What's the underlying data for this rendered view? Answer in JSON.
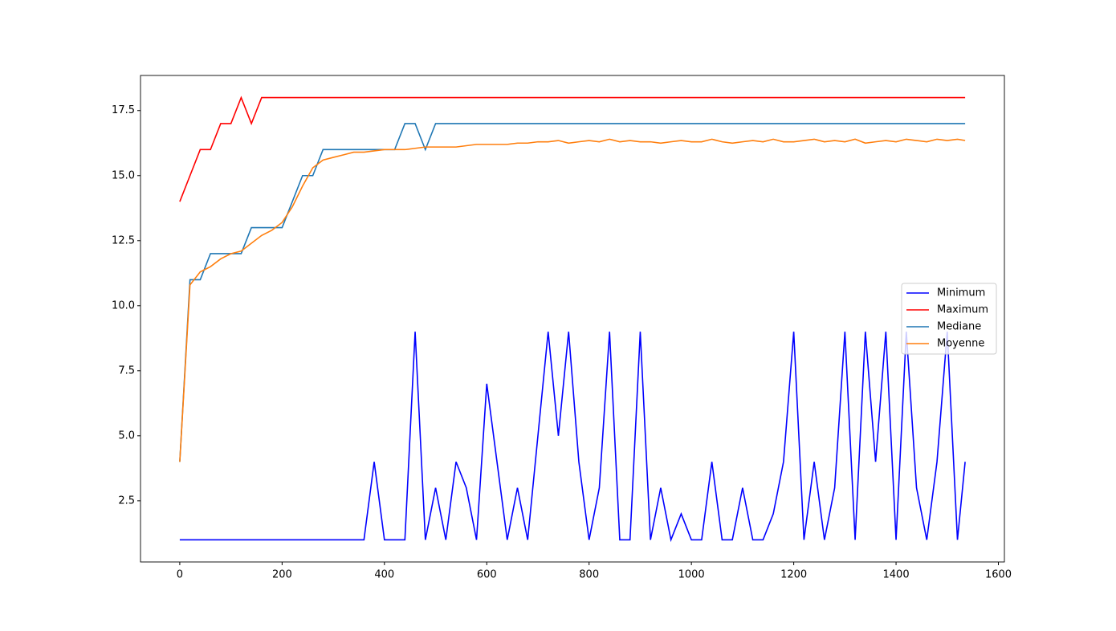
{
  "chart_data": {
    "type": "line",
    "x": [
      0,
      20,
      40,
      60,
      80,
      100,
      120,
      140,
      160,
      180,
      200,
      220,
      240,
      260,
      280,
      300,
      320,
      340,
      360,
      380,
      400,
      420,
      440,
      460,
      480,
      500,
      520,
      540,
      560,
      580,
      600,
      620,
      640,
      660,
      680,
      700,
      720,
      740,
      760,
      780,
      800,
      820,
      840,
      860,
      880,
      900,
      920,
      940,
      960,
      980,
      1000,
      1020,
      1040,
      1060,
      1080,
      1100,
      1120,
      1140,
      1160,
      1180,
      1200,
      1220,
      1240,
      1260,
      1280,
      1300,
      1320,
      1340,
      1360,
      1380,
      1400,
      1420,
      1440,
      1460,
      1480,
      1500,
      1520,
      1535
    ],
    "series": [
      {
        "name": "Minimum",
        "color": "#0000ff",
        "values": [
          1,
          1,
          1,
          1,
          1,
          1,
          1,
          1,
          1,
          1,
          1,
          1,
          1,
          1,
          1,
          1,
          1,
          1,
          1,
          4,
          1,
          1,
          1,
          9,
          1,
          3,
          1,
          4,
          3,
          1,
          7,
          4,
          1,
          3,
          1,
          5,
          9,
          5,
          9,
          4,
          1,
          3,
          9,
          1,
          1,
          9,
          1,
          3,
          1,
          2,
          1,
          1,
          4,
          1,
          1,
          3,
          1,
          1,
          2,
          4,
          9,
          1,
          4,
          1,
          3,
          9,
          1,
          9,
          4,
          9,
          1,
          9,
          3,
          1,
          4,
          9,
          1,
          4
        ]
      },
      {
        "name": "Maximum",
        "color": "#ff0000",
        "values": [
          14,
          15,
          16,
          16,
          17,
          17,
          18,
          17,
          18,
          18,
          18,
          18,
          18,
          18,
          18,
          18,
          18,
          18,
          18,
          18,
          18,
          18,
          18,
          18,
          18,
          18,
          18,
          18,
          18,
          18,
          18,
          18,
          18,
          18,
          18,
          18,
          18,
          18,
          18,
          18,
          18,
          18,
          18,
          18,
          18,
          18,
          18,
          18,
          18,
          18,
          18,
          18,
          18,
          18,
          18,
          18,
          18,
          18,
          18,
          18,
          18,
          18,
          18,
          18,
          18,
          18,
          18,
          18,
          18,
          18,
          18,
          18,
          18,
          18,
          18,
          18,
          18,
          18
        ]
      },
      {
        "name": "Mediane",
        "color": "#1f77b4",
        "values": [
          4,
          11,
          11,
          12,
          12,
          12,
          12,
          13,
          13,
          13,
          13,
          14,
          15,
          15,
          16,
          16,
          16,
          16,
          16,
          16,
          16,
          16,
          17,
          17,
          16,
          17,
          17,
          17,
          17,
          17,
          17,
          17,
          17,
          17,
          17,
          17,
          17,
          17,
          17,
          17,
          17,
          17,
          17,
          17,
          17,
          17,
          17,
          17,
          17,
          17,
          17,
          17,
          17,
          17,
          17,
          17,
          17,
          17,
          17,
          17,
          17,
          17,
          17,
          17,
          17,
          17,
          17,
          17,
          17,
          17,
          17,
          17,
          17,
          17,
          17,
          17,
          17,
          17
        ]
      },
      {
        "name": "Moyenne",
        "color": "#ff7f0e",
        "values": [
          4,
          10.8,
          11.3,
          11.5,
          11.8,
          12,
          12.1,
          12.4,
          12.7,
          12.9,
          13.2,
          13.8,
          14.6,
          15.3,
          15.6,
          15.7,
          15.8,
          15.9,
          15.9,
          15.95,
          16,
          16,
          16,
          16.05,
          16.1,
          16.1,
          16.1,
          16.1,
          16.15,
          16.2,
          16.2,
          16.2,
          16.2,
          16.25,
          16.25,
          16.3,
          16.3,
          16.35,
          16.25,
          16.3,
          16.35,
          16.3,
          16.4,
          16.3,
          16.35,
          16.3,
          16.3,
          16.25,
          16.3,
          16.35,
          16.3,
          16.3,
          16.4,
          16.3,
          16.25,
          16.3,
          16.35,
          16.3,
          16.4,
          16.3,
          16.3,
          16.35,
          16.4,
          16.3,
          16.35,
          16.3,
          16.4,
          16.25,
          16.3,
          16.35,
          16.3,
          16.4,
          16.35,
          16.3,
          16.4,
          16.35,
          16.4,
          16.35
        ]
      }
    ],
    "xlim": [
      -76.75,
      1611.75
    ],
    "xticks": [
      0,
      200,
      400,
      600,
      800,
      1000,
      1200,
      1400,
      1600
    ],
    "ylim": [
      0.15,
      18.85
    ],
    "yticks": [
      2.5,
      {
        "value": 5,
        "label": "5.0"
      },
      7.5,
      {
        "value": 10,
        "label": "10.0"
      },
      12.5,
      {
        "value": 15,
        "label": "15.0"
      },
      17.5
    ],
    "grid": false,
    "legend": "center right"
  }
}
